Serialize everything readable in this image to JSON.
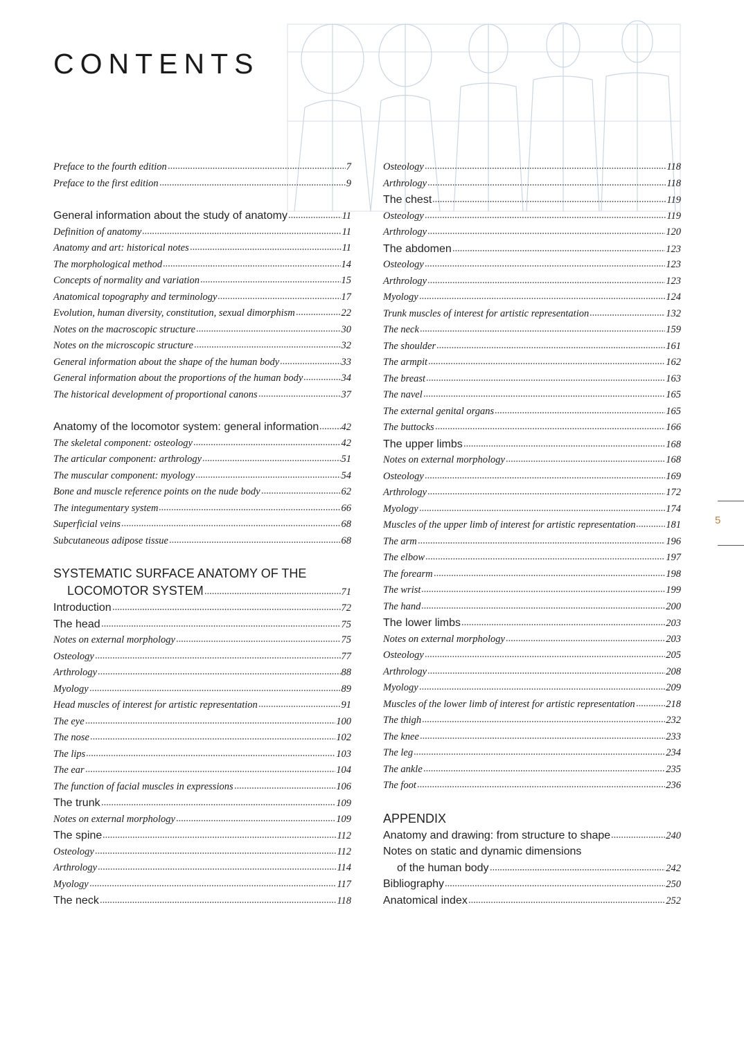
{
  "title": "CONTENTS",
  "page_number": "5",
  "columns": [
    {
      "blocks": [
        {
          "entries": [
            {
              "text": "Preface to the fourth edition",
              "page": 7,
              "style": "italic"
            },
            {
              "text": "Preface to the first edition",
              "page": 9,
              "style": "italic"
            }
          ]
        },
        {
          "entries": [
            {
              "text": "General information about the study of anatomy",
              "page": 11,
              "style": "roman"
            },
            {
              "text": "Definition of anatomy",
              "page": 11,
              "style": "italic"
            },
            {
              "text": "Anatomy and art: historical notes",
              "page": 11,
              "style": "italic"
            },
            {
              "text": "The morphological method",
              "page": 14,
              "style": "italic"
            },
            {
              "text": "Concepts of normality and variation",
              "page": 15,
              "style": "italic"
            },
            {
              "text": "Anatomical topography and terminology",
              "page": 17,
              "style": "italic"
            },
            {
              "text": "Evolution, human diversity, constitution, sexual dimorphism",
              "page": 22,
              "style": "italic"
            },
            {
              "text": "Notes on the macroscopic structure",
              "page": 30,
              "style": "italic"
            },
            {
              "text": "Notes on the microscopic structure",
              "page": 32,
              "style": "italic"
            },
            {
              "text": "General information about the shape of the human body",
              "page": 33,
              "style": "italic"
            },
            {
              "text": "General information about the proportions of the human body",
              "page": 34,
              "style": "italic"
            },
            {
              "text": "The historical development of proportional canons",
              "page": 37,
              "style": "italic"
            }
          ]
        },
        {
          "entries": [
            {
              "text": "Anatomy of the locomotor system: general information",
              "page": 42,
              "style": "roman"
            },
            {
              "text": "The skeletal component: osteology",
              "page": 42,
              "style": "italic"
            },
            {
              "text": "The articular component: arthrology",
              "page": 51,
              "style": "italic"
            },
            {
              "text": "The muscular component: myology",
              "page": 54,
              "style": "italic"
            },
            {
              "text": "Bone and muscle reference points on the nude body",
              "page": 62,
              "style": "italic"
            },
            {
              "text": "The integumentary system",
              "page": 66,
              "style": "italic"
            },
            {
              "text": "Superficial veins",
              "page": 68,
              "style": "italic"
            },
            {
              "text": "Subcutaneous adipose tissue",
              "page": 68,
              "style": "italic"
            }
          ]
        },
        {
          "entries": [
            {
              "text": [
                "SYSTEMATIC SURFACE ANATOMY OF THE",
                "LOCOMOTOR SYSTEM"
              ],
              "page": 71,
              "style": "heading"
            },
            {
              "text": "Introduction",
              "page": 72,
              "style": "roman"
            },
            {
              "text": "The head",
              "page": 75,
              "style": "roman"
            },
            {
              "text": "Notes on external morphology",
              "page": 75,
              "style": "italic"
            },
            {
              "text": "Osteology",
              "page": 77,
              "style": "italic"
            },
            {
              "text": "Arthrology",
              "page": 88,
              "style": "italic"
            },
            {
              "text": "Myology",
              "page": 89,
              "style": "italic"
            },
            {
              "text": "Head muscles of interest for artistic representation",
              "page": 91,
              "style": "italic"
            },
            {
              "text": "The eye",
              "page": 100,
              "style": "italic"
            },
            {
              "text": "The nose",
              "page": 102,
              "style": "italic"
            },
            {
              "text": "The lips",
              "page": 103,
              "style": "italic"
            },
            {
              "text": "The ear",
              "page": 104,
              "style": "italic"
            },
            {
              "text": "The function of facial muscles in expressions",
              "page": 106,
              "style": "italic"
            },
            {
              "text": "The trunk",
              "page": 109,
              "style": "roman"
            },
            {
              "text": "Notes on external morphology",
              "page": 109,
              "style": "italic"
            },
            {
              "text": "The spine",
              "page": 112,
              "style": "roman"
            },
            {
              "text": "Osteology",
              "page": 112,
              "style": "italic"
            },
            {
              "text": "Arthrology",
              "page": 114,
              "style": "italic"
            },
            {
              "text": "Myology",
              "page": 117,
              "style": "italic"
            },
            {
              "text": "The neck",
              "page": 118,
              "style": "roman"
            }
          ]
        }
      ]
    },
    {
      "blocks": [
        {
          "entries": [
            {
              "text": "Osteology",
              "page": 118,
              "style": "italic"
            },
            {
              "text": "Arthrology",
              "page": 118,
              "style": "italic"
            },
            {
              "text": "The chest",
              "page": 119,
              "style": "roman"
            },
            {
              "text": "Osteology",
              "page": 119,
              "style": "italic"
            },
            {
              "text": "Arthrology",
              "page": 120,
              "style": "italic"
            },
            {
              "text": "The abdomen",
              "page": 123,
              "style": "roman"
            },
            {
              "text": "Osteology",
              "page": 123,
              "style": "italic"
            },
            {
              "text": "Arthrology",
              "page": 123,
              "style": "italic"
            },
            {
              "text": "Myology",
              "page": 124,
              "style": "italic"
            },
            {
              "text": "Trunk muscles of interest for artistic representation",
              "page": 132,
              "style": "italic"
            },
            {
              "text": "The neck",
              "page": 159,
              "style": "italic"
            },
            {
              "text": "The shoulder",
              "page": 161,
              "style": "italic"
            },
            {
              "text": "The armpit",
              "page": 162,
              "style": "italic"
            },
            {
              "text": "The breast",
              "page": 163,
              "style": "italic"
            },
            {
              "text": "The navel",
              "page": 165,
              "style": "italic"
            },
            {
              "text": "The external genital organs",
              "page": 165,
              "style": "italic"
            },
            {
              "text": "The buttocks",
              "page": 166,
              "style": "italic"
            },
            {
              "text": "The upper limbs",
              "page": 168,
              "style": "roman"
            },
            {
              "text": "Notes on external morphology",
              "page": 168,
              "style": "italic"
            },
            {
              "text": "Osteology",
              "page": 169,
              "style": "italic"
            },
            {
              "text": "Arthrology",
              "page": 172,
              "style": "italic"
            },
            {
              "text": "Myology",
              "page": 174,
              "style": "italic"
            },
            {
              "text": "Muscles of the upper limb of interest for artistic representation",
              "page": 181,
              "style": "italic"
            },
            {
              "text": "The arm",
              "page": 196,
              "style": "italic"
            },
            {
              "text": "The elbow",
              "page": 197,
              "style": "italic"
            },
            {
              "text": "The forearm",
              "page": 198,
              "style": "italic"
            },
            {
              "text": "The wrist",
              "page": 199,
              "style": "italic"
            },
            {
              "text": "The hand",
              "page": 200,
              "style": "italic"
            },
            {
              "text": "The lower limbs",
              "page": 203,
              "style": "roman"
            },
            {
              "text": "Notes on external morphology",
              "page": 203,
              "style": "italic"
            },
            {
              "text": "Osteology",
              "page": 205,
              "style": "italic"
            },
            {
              "text": "Arthrology",
              "page": 208,
              "style": "italic"
            },
            {
              "text": "Myology",
              "page": 209,
              "style": "italic"
            },
            {
              "text": "Muscles of the lower limb of interest for artistic representation",
              "page": 218,
              "style": "italic"
            },
            {
              "text": "The thigh",
              "page": 232,
              "style": "italic"
            },
            {
              "text": "The knee",
              "page": 233,
              "style": "italic"
            },
            {
              "text": "The leg",
              "page": 234,
              "style": "italic"
            },
            {
              "text": "The ankle",
              "page": 235,
              "style": "italic"
            },
            {
              "text": "The foot",
              "page": 236,
              "style": "italic"
            }
          ]
        },
        {
          "entries": [
            {
              "text": "APPENDIX",
              "style": "heading"
            },
            {
              "text": "Anatomy and drawing: from structure to shape",
              "page": 240,
              "style": "roman"
            },
            {
              "text": [
                "Notes on static and dynamic dimensions",
                "of the human body"
              ],
              "page": 242,
              "style": "roman"
            },
            {
              "text": "Bibliography",
              "page": 250,
              "style": "roman"
            },
            {
              "text": "Anatomical index",
              "page": 252,
              "style": "roman"
            }
          ]
        }
      ]
    }
  ]
}
